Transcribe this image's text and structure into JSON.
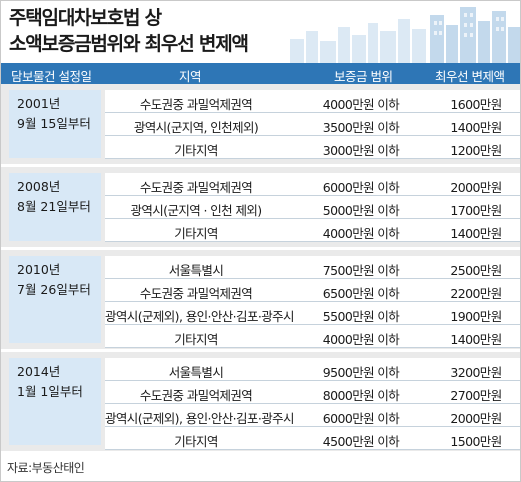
{
  "title": {
    "line1": "주택임대차보호법 상",
    "line2": "소액보증금범위와 최우선 변제액"
  },
  "headers": {
    "date": "담보물건 설정일",
    "region": "지역",
    "deposit": "보증금 범위",
    "priority": "최우선 변제액"
  },
  "groups": [
    {
      "date_line1": "2001년",
      "date_line2": "9월 15일부터",
      "rows": [
        {
          "region": "수도권중 과밀억제권역",
          "deposit": "4000만원 이하",
          "priority": "1600만원"
        },
        {
          "region": "광역시(군지역, 인천제외)",
          "deposit": "3500만원 이하",
          "priority": "1400만원"
        },
        {
          "region": "기타지역",
          "deposit": "3000만원 이하",
          "priority": "1200만원"
        }
      ]
    },
    {
      "date_line1": "2008년",
      "date_line2": "8월 21일부터",
      "rows": [
        {
          "region": "수도권중 과밀억제권역",
          "deposit": "6000만원 이하",
          "priority": "2000만원"
        },
        {
          "region": "광역시(군지역 · 인천 제외)",
          "deposit": "5000만원 이하",
          "priority": "1700만원"
        },
        {
          "region": "기타지역",
          "deposit": "4000만원 이하",
          "priority": "1400만원"
        }
      ]
    },
    {
      "date_line1": "2010년",
      "date_line2": "7월 26일부터",
      "rows": [
        {
          "region": "서울특별시",
          "deposit": "7500만원 이하",
          "priority": "2500만원"
        },
        {
          "region": "수도권중 과밀억제권역",
          "deposit": "6500만원 이하",
          "priority": "2200만원"
        },
        {
          "region": "광역시(군제외), 용인·안산·김포·광주시",
          "deposit": "5500만원 이하",
          "priority": "1900만원"
        },
        {
          "region": "기타지역",
          "deposit": "4000만원 이하",
          "priority": "1400만원"
        }
      ]
    },
    {
      "date_line1": "2014년",
      "date_line2": "1월 1일부터",
      "rows": [
        {
          "region": "서울특별시",
          "deposit": "9500만원 이하",
          "priority": "3200만원"
        },
        {
          "region": "수도권중 과밀억제권역",
          "deposit": "8000만원 이하",
          "priority": "2700만원"
        },
        {
          "region": "광역시(군제외), 용인·안산·김포·광주시",
          "deposit": "6000만원 이하",
          "priority": "2000만원"
        },
        {
          "region": "기타지역",
          "deposit": "4500만원 이하",
          "priority": "1500만원"
        }
      ]
    }
  ],
  "source": "자료:부동산태인",
  "colors": {
    "header_bg": "#2e76b6",
    "date_cell_bg": "#d8e8f6",
    "group_bg": "#eaeaea",
    "skyline": "#cfe0ef"
  }
}
